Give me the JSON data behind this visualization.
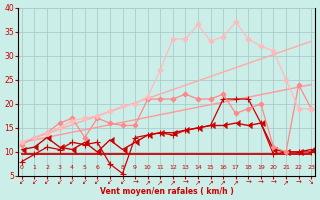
{
  "background_color": "#cceee8",
  "grid_color": "#aacccc",
  "xlabel": "Vent moyen/en rafales ( km/h )",
  "xlabel_color": "#cc0000",
  "tick_color": "#cc0000",
  "xlim": [
    -0.3,
    23.3
  ],
  "ylim": [
    5,
    40
  ],
  "ytick_vals": [
    5,
    10,
    15,
    20,
    25,
    30,
    35,
    40
  ],
  "xtick_vals": [
    0,
    1,
    2,
    3,
    4,
    5,
    6,
    7,
    8,
    9,
    10,
    11,
    12,
    13,
    14,
    15,
    16,
    17,
    18,
    19,
    20,
    21,
    22,
    23
  ],
  "wind_arrows": [
    "↙",
    "↙",
    "↙",
    "↙",
    "↙",
    "↙",
    "↙",
    "↙",
    "↙",
    "→",
    "↗",
    "↗",
    "↗",
    "→",
    "↗",
    "↗",
    "↗",
    "↗",
    "→",
    "→",
    "→",
    "↗",
    "→",
    "↘"
  ],
  "lines": [
    {
      "x": [
        0,
        23
      ],
      "y": [
        9.5,
        9.5
      ],
      "color": "#cc0000",
      "linewidth": 1.3,
      "marker": null,
      "markersize": 0,
      "zorder": 2
    },
    {
      "x": [
        0,
        1,
        2,
        3,
        4,
        5,
        6,
        7,
        8,
        9,
        10,
        11,
        12,
        13,
        14,
        15,
        16,
        17,
        18,
        19,
        20,
        21,
        22,
        23
      ],
      "y": [
        8.0,
        9.5,
        11,
        10.5,
        12,
        11.5,
        12,
        7.5,
        5.5,
        13,
        13.5,
        14,
        13.5,
        14.5,
        15,
        15.5,
        21,
        21,
        21,
        16,
        9.5,
        10,
        10,
        10
      ],
      "color": "#cc0000",
      "linewidth": 0.9,
      "marker": "+",
      "markersize": 4,
      "zorder": 5
    },
    {
      "x": [
        0,
        1,
        2,
        3,
        4,
        5,
        6,
        7,
        8,
        9,
        10,
        11,
        12,
        13,
        14,
        15,
        16,
        17,
        18,
        19,
        20,
        21,
        22,
        23
      ],
      "y": [
        10.5,
        11,
        13,
        11,
        10.5,
        12,
        10,
        12.5,
        10.5,
        12,
        13.5,
        14,
        14,
        14.5,
        15,
        15.5,
        15.5,
        16,
        15.5,
        16,
        10.5,
        10,
        10,
        10.5
      ],
      "color": "#cc0000",
      "linewidth": 1.0,
      "marker": 4,
      "markersize": 4,
      "zorder": 4
    },
    {
      "x": [
        0,
        1,
        2,
        3,
        4,
        5,
        6,
        7,
        8,
        9,
        10,
        11,
        12,
        13,
        14,
        15,
        16,
        17,
        18,
        19,
        20,
        21,
        22,
        23
      ],
      "y": [
        11.5,
        13,
        14,
        16,
        17,
        13,
        17,
        16,
        15.5,
        15.5,
        21,
        21,
        21,
        22,
        21,
        21,
        22,
        18,
        19,
        20,
        11,
        10,
        24,
        19
      ],
      "color": "#ff8888",
      "linewidth": 0.9,
      "marker": "D",
      "markersize": 2.5,
      "zorder": 6
    },
    {
      "x": [
        0,
        23
      ],
      "y": [
        12,
        24
      ],
      "color": "#ff9999",
      "linewidth": 1.0,
      "marker": null,
      "markersize": 0,
      "zorder": 1
    },
    {
      "x": [
        0,
        23
      ],
      "y": [
        12,
        33
      ],
      "color": "#ffaaaa",
      "linewidth": 1.0,
      "marker": null,
      "markersize": 0,
      "zorder": 1
    },
    {
      "x": [
        0,
        1,
        2,
        3,
        4,
        5,
        6,
        7,
        8,
        9,
        10,
        11,
        12,
        13,
        14,
        15,
        16,
        17,
        18,
        19,
        20,
        21,
        22,
        23
      ],
      "y": [
        12,
        13,
        14,
        15,
        16.5,
        17,
        17.5,
        18.5,
        19.5,
        20,
        21.5,
        27,
        33.5,
        33.5,
        36.5,
        33,
        34,
        37,
        33.5,
        32,
        31,
        25,
        19,
        19
      ],
      "color": "#ffbbbb",
      "linewidth": 0.9,
      "marker": "D",
      "markersize": 2.5,
      "zorder": 7
    }
  ]
}
